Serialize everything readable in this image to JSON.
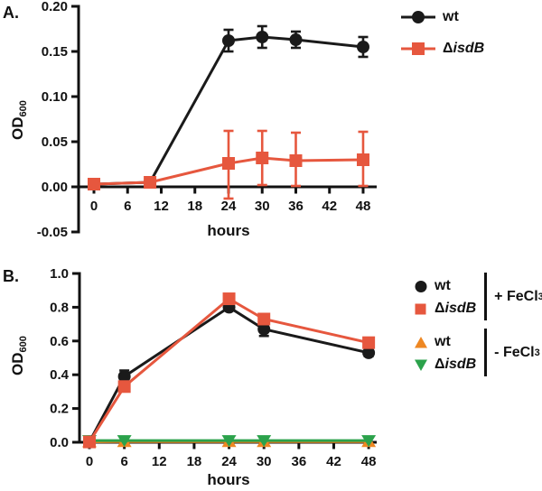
{
  "figure": {
    "panel_a_label": "A.",
    "panel_b_label": "B."
  },
  "chart_data": [
    {
      "id": "A",
      "type": "line",
      "panel_label": "A.",
      "xlabel": "hours",
      "ylabel": {
        "text": "OD",
        "sub": "600"
      },
      "xlim": [
        0,
        48
      ],
      "ylim": [
        -0.05,
        0.2
      ],
      "xticks": [
        0,
        6,
        12,
        18,
        24,
        30,
        36,
        42,
        48
      ],
      "xtick_labels": [
        "0",
        "6",
        "12",
        "18",
        "24",
        "30",
        "36",
        "42",
        "48"
      ],
      "yticks": [
        -0.05,
        0.0,
        0.05,
        0.1,
        0.15,
        0.2
      ],
      "ytick_labels": [
        "-0.05",
        "0.00",
        "0.05",
        "0.10",
        "0.15",
        "0.20"
      ],
      "grid": false,
      "legend_position": "right-top",
      "series": [
        {
          "name": "wt",
          "label_normal": "wt",
          "label_italic": "",
          "marker": "circle",
          "color": "#1a1a1a",
          "x": [
            0,
            10,
            24,
            30,
            36,
            48
          ],
          "y": [
            0.003,
            0.005,
            0.162,
            0.166,
            0.163,
            0.155
          ],
          "err_up": [
            0,
            0,
            0.012,
            0.012,
            0.009,
            0.011
          ],
          "err_down": [
            0,
            0,
            0.012,
            0.012,
            0.009,
            0.011
          ]
        },
        {
          "name": "ΔisdB",
          "label_normal": "Δ",
          "label_italic": "isdB",
          "marker": "square",
          "color": "#e6573e",
          "x": [
            0,
            10,
            24,
            30,
            36,
            48
          ],
          "y": [
            0.003,
            0.005,
            0.026,
            0.032,
            0.029,
            0.03
          ],
          "err_up": [
            0,
            0,
            0.036,
            0.03,
            0.031,
            0.031
          ],
          "err_down": [
            0,
            0,
            0.039,
            0.03,
            0.028,
            0.029
          ]
        }
      ]
    },
    {
      "id": "B",
      "type": "line",
      "panel_label": "B.",
      "xlabel": "hours",
      "ylabel": {
        "text": "OD",
        "sub": "600"
      },
      "xlim": [
        0,
        48
      ],
      "ylim": [
        0.0,
        1.0
      ],
      "xticks": [
        0,
        6,
        12,
        18,
        24,
        30,
        36,
        42,
        48
      ],
      "xtick_labels": [
        "0",
        "6",
        "12",
        "18",
        "24",
        "30",
        "36",
        "42",
        "48"
      ],
      "yticks": [
        0.0,
        0.2,
        0.4,
        0.6,
        0.8,
        1.0
      ],
      "ytick_labels": [
        "0.0",
        "0.2",
        "0.4",
        "0.6",
        "0.8",
        "1.0"
      ],
      "grid": false,
      "legend_position": "right-top",
      "series": [
        {
          "name": "wt +FeCl3",
          "label_normal": "wt",
          "label_italic": "",
          "marker": "circle",
          "color": "#1a1a1a",
          "x": [
            0,
            6,
            24,
            30,
            48
          ],
          "y": [
            0.002,
            0.39,
            0.8,
            0.67,
            0.53
          ],
          "err_up": [
            0,
            0.035,
            0.02,
            0.04,
            0.02
          ],
          "err_down": [
            0,
            0.035,
            0.02,
            0.04,
            0.02
          ]
        },
        {
          "name": "ΔisdB +FeCl3",
          "label_normal": "Δ",
          "label_italic": "isdB",
          "marker": "square",
          "color": "#e6573e",
          "x": [
            0,
            6,
            24,
            30,
            48
          ],
          "y": [
            0.002,
            0.33,
            0.85,
            0.73,
            0.59
          ],
          "err_up": [
            0,
            0,
            0,
            0,
            0
          ],
          "err_down": [
            0,
            0,
            0,
            0,
            0
          ]
        },
        {
          "name": "wt -FeCl3",
          "label_normal": "wt",
          "label_italic": "",
          "marker": "triangle-up",
          "color": "#ee8722",
          "x": [
            0,
            6,
            24,
            30,
            48
          ],
          "y": [
            0.003,
            0.004,
            0.004,
            0.004,
            0.004
          ],
          "err_up": [
            0,
            0,
            0,
            0,
            0
          ],
          "err_down": [
            0,
            0,
            0,
            0,
            0
          ]
        },
        {
          "name": "ΔisdB -FeCl3",
          "label_normal": "Δ",
          "label_italic": "isdB",
          "marker": "triangle-down",
          "color": "#2ba24b",
          "x": [
            0,
            6,
            24,
            30,
            48
          ],
          "y": [
            0.01,
            0.01,
            0.01,
            0.01,
            0.01
          ],
          "err_up": [
            0,
            0,
            0,
            0,
            0
          ],
          "err_down": [
            0,
            0,
            0,
            0,
            0
          ]
        }
      ],
      "legend_groups": [
        {
          "label_text": "+ FeCl",
          "label_sub": "3"
        },
        {
          "label_text": "- FeCl",
          "label_sub": "3"
        }
      ]
    }
  ]
}
